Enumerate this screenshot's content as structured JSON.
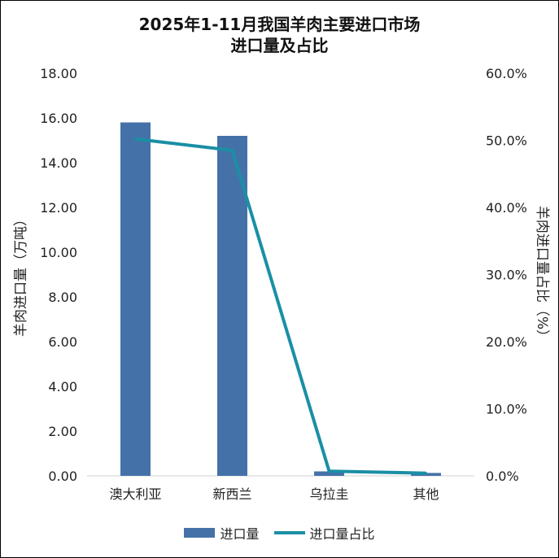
{
  "chart_data": {
    "type": "bar",
    "title_line1": "2025年1-11月我国羊肉主要进口市场",
    "title_line2": "进口量及占比",
    "categories": [
      "澳大利亚",
      "新西兰",
      "乌拉圭",
      "其他"
    ],
    "series": [
      {
        "name": "进口量",
        "type": "bar",
        "axis": "left",
        "values": [
          15.8,
          15.2,
          0.2,
          0.13
        ],
        "color": "#4472A8"
      },
      {
        "name": "进口量占比",
        "type": "line",
        "axis": "right",
        "values": [
          50.2,
          48.5,
          0.7,
          0.4
        ],
        "color": "#1A8FA5"
      }
    ],
    "ylabel": "羊肉进口量（万吨）",
    "y2label": "羊肉进口量占比（%）",
    "ylim": [
      0,
      18
    ],
    "y2lim": [
      0,
      60
    ],
    "yticks": [
      "0.00",
      "2.00",
      "4.00",
      "6.00",
      "8.00",
      "10.00",
      "12.00",
      "14.00",
      "16.00",
      "18.00"
    ],
    "y2ticks": [
      "0.0%",
      "10.0%",
      "20.0%",
      "30.0%",
      "40.0%",
      "50.0%",
      "60.0%"
    ],
    "grid": false,
    "legend_position": "bottom"
  }
}
